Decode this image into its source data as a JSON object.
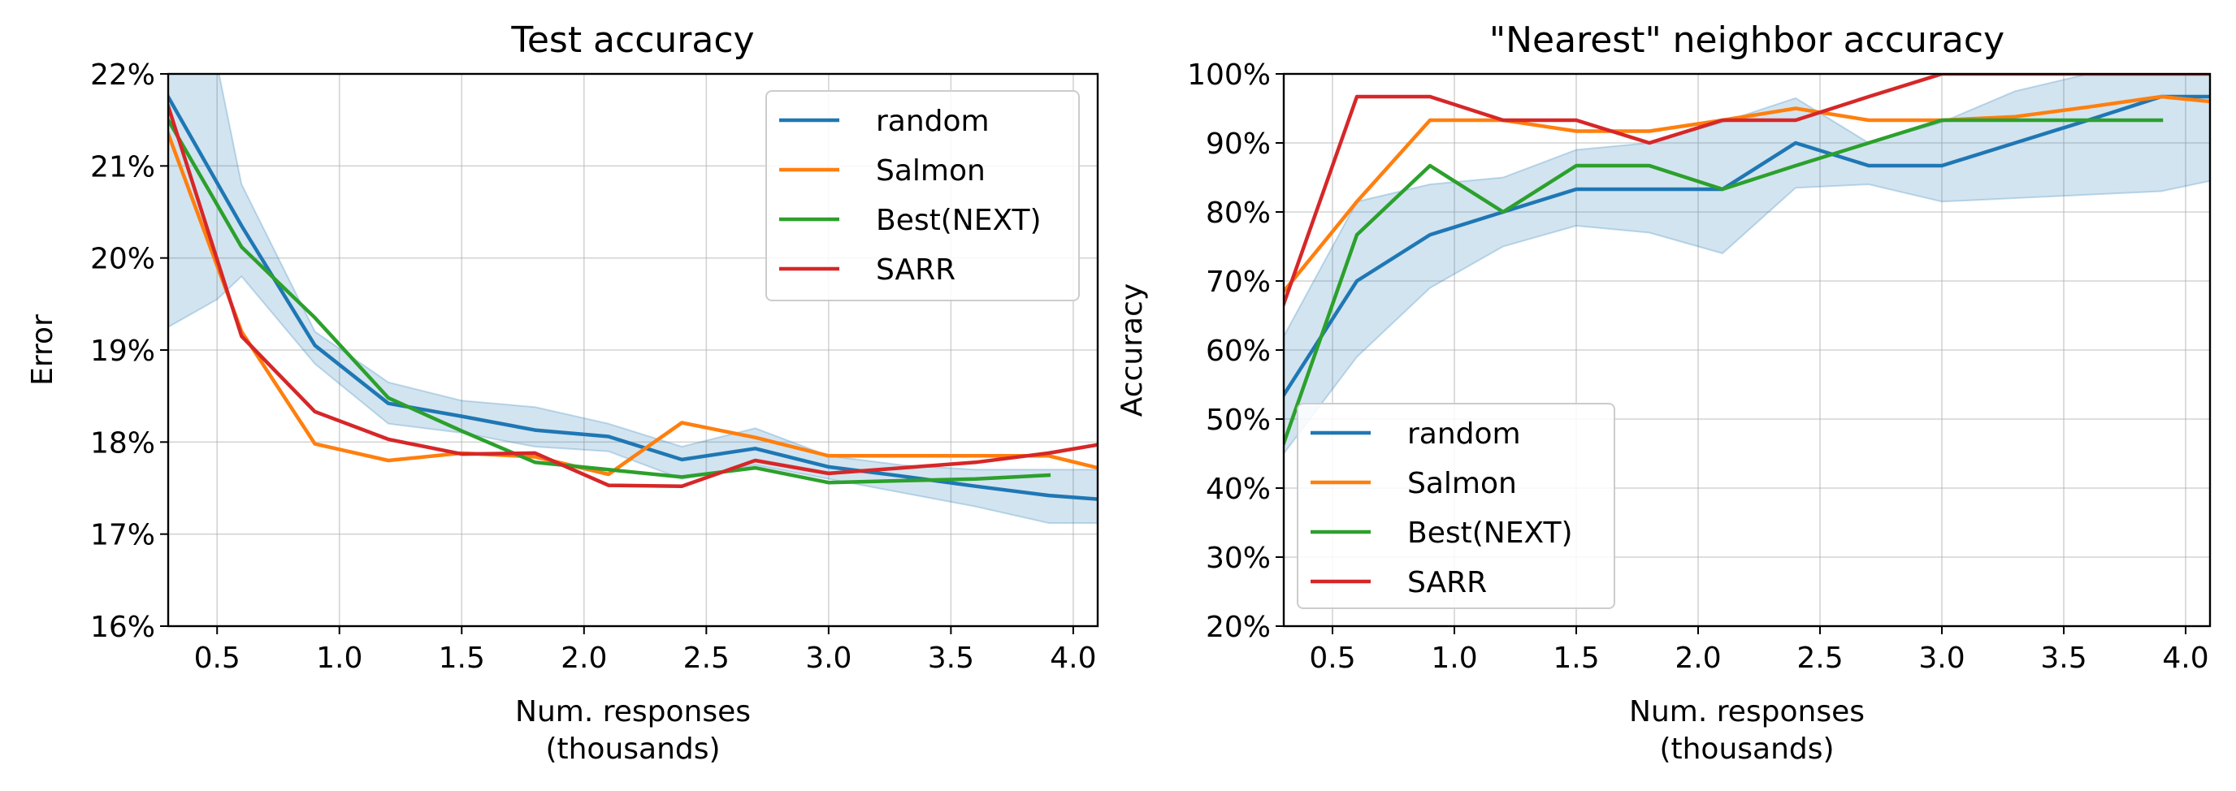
{
  "colors": {
    "random": "#1f77b4",
    "Salmon": "#ff7f0e",
    "Best(NEXT)": "#2ca02c",
    "SARR": "#d62728",
    "band": "#1f77b4",
    "grid": "#b0b0b0"
  },
  "chart_data": [
    {
      "type": "line",
      "title": "Test accuracy",
      "xlabel": "Num. responses\n(thousands)",
      "ylabel": "Error",
      "xlim": [
        0.3,
        4.1
      ],
      "ylim": [
        16,
        22
      ],
      "xticks": [
        0.5,
        1.0,
        1.5,
        2.0,
        2.5,
        3.0,
        3.5,
        4.0
      ],
      "xtick_labels": [
        "0.5",
        "1.0",
        "1.5",
        "2.0",
        "2.5",
        "3.0",
        "3.5",
        "4.0"
      ],
      "yticks": [
        16,
        17,
        18,
        19,
        20,
        21,
        22
      ],
      "ytick_labels": [
        "16%",
        "17%",
        "18%",
        "19%",
        "20%",
        "21%",
        "22%"
      ],
      "grid": true,
      "legend_position": "top-right",
      "band": {
        "series": "random",
        "x": [
          0.3,
          0.5,
          0.6,
          0.9,
          1.2,
          1.5,
          1.8,
          2.1,
          2.4,
          2.7,
          3.0,
          3.3,
          3.6,
          3.9,
          4.1
        ],
        "upper": [
          22.0,
          22.1,
          20.8,
          19.2,
          18.65,
          18.45,
          18.38,
          18.2,
          17.95,
          18.15,
          17.85,
          17.75,
          17.7,
          17.7,
          17.7
        ],
        "lower": [
          19.25,
          19.55,
          19.8,
          18.85,
          18.2,
          18.1,
          17.95,
          17.9,
          17.6,
          17.75,
          17.6,
          17.45,
          17.3,
          17.12,
          17.12
        ]
      },
      "series": [
        {
          "name": "random",
          "x": [
            0.3,
            0.6,
            0.9,
            1.2,
            1.5,
            1.8,
            2.1,
            2.4,
            2.7,
            3.0,
            3.3,
            3.6,
            3.9,
            4.1
          ],
          "values": [
            21.75,
            20.35,
            19.05,
            18.42,
            18.28,
            18.13,
            18.06,
            17.81,
            17.93,
            17.73,
            17.63,
            17.52,
            17.42,
            17.38
          ]
        },
        {
          "name": "Salmon",
          "x": [
            0.3,
            0.6,
            0.9,
            1.2,
            1.5,
            1.8,
            2.1,
            2.4,
            2.7,
            3.0,
            3.3,
            3.6,
            3.9,
            4.1
          ],
          "values": [
            21.35,
            19.2,
            17.98,
            17.8,
            17.88,
            17.84,
            17.65,
            18.21,
            18.05,
            17.85,
            17.85,
            17.85,
            17.85,
            17.72
          ]
        },
        {
          "name": "Best(NEXT)",
          "x": [
            0.3,
            0.6,
            0.9,
            1.2,
            1.5,
            1.8,
            2.1,
            2.4,
            2.7,
            3.0,
            3.3,
            3.6,
            3.9
          ],
          "values": [
            21.5,
            20.12,
            19.35,
            18.48,
            18.12,
            17.78,
            17.7,
            17.62,
            17.72,
            17.56,
            17.58,
            17.6,
            17.64
          ]
        },
        {
          "name": "SARR",
          "x": [
            0.3,
            0.6,
            0.9,
            1.2,
            1.5,
            1.8,
            2.1,
            2.4,
            2.7,
            3.0,
            3.3,
            3.6,
            3.9,
            4.1
          ],
          "values": [
            21.65,
            19.15,
            18.33,
            18.03,
            17.87,
            17.88,
            17.53,
            17.52,
            17.8,
            17.66,
            17.72,
            17.78,
            17.88,
            17.97
          ]
        }
      ]
    },
    {
      "type": "line",
      "title": "\"Nearest\" neighbor accuracy",
      "xlabel": "Num. responses\n(thousands)",
      "ylabel": "Accuracy",
      "xlim": [
        0.3,
        4.1
      ],
      "ylim": [
        20,
        100
      ],
      "xticks": [
        0.5,
        1.0,
        1.5,
        2.0,
        2.5,
        3.0,
        3.5,
        4.0
      ],
      "xtick_labels": [
        "0.5",
        "1.0",
        "1.5",
        "2.0",
        "2.5",
        "3.0",
        "3.5",
        "4.0"
      ],
      "yticks": [
        20,
        30,
        40,
        50,
        60,
        70,
        80,
        90,
        100
      ],
      "ytick_labels": [
        "20%",
        "30%",
        "40%",
        "50%",
        "60%",
        "70%",
        "80%",
        "90%",
        "100%"
      ],
      "grid": true,
      "legend_position": "bottom-left",
      "band": {
        "series": "random",
        "x": [
          0.3,
          0.6,
          0.9,
          1.2,
          1.5,
          1.8,
          2.1,
          2.4,
          2.7,
          3.0,
          3.3,
          3.6,
          3.9,
          4.1
        ],
        "upper": [
          62,
          81.5,
          84,
          85,
          89,
          90,
          93,
          96.5,
          90,
          93,
          97.5,
          100,
          100,
          100
        ],
        "lower": [
          45,
          59,
          69,
          75,
          78,
          77,
          74,
          83.5,
          84,
          81.5,
          82,
          82.5,
          83,
          84.5
        ]
      },
      "series": [
        {
          "name": "random",
          "x": [
            0.3,
            0.6,
            0.9,
            1.2,
            1.5,
            1.8,
            2.1,
            2.4,
            2.7,
            3.0,
            3.3,
            3.6,
            3.9,
            4.1
          ],
          "values": [
            53.5,
            70.0,
            76.7,
            80.0,
            83.3,
            83.3,
            83.3,
            90.0,
            86.7,
            86.7,
            90.0,
            93.3,
            96.7,
            96.7
          ]
        },
        {
          "name": "Salmon",
          "x": [
            0.3,
            0.6,
            0.9,
            1.2,
            1.5,
            1.8,
            2.1,
            2.4,
            2.7,
            3.0,
            3.3,
            3.6,
            3.9,
            4.1
          ],
          "values": [
            68.5,
            81.5,
            93.3,
            93.3,
            91.7,
            91.7,
            93.3,
            95.0,
            93.3,
            93.3,
            93.8,
            95.2,
            96.7,
            96.0
          ]
        },
        {
          "name": "Best(NEXT)",
          "x": [
            0.3,
            0.6,
            0.9,
            1.2,
            1.5,
            1.8,
            2.1,
            2.4,
            2.7,
            3.0,
            3.3,
            3.6,
            3.9
          ],
          "values": [
            46.5,
            76.7,
            86.7,
            80.0,
            86.7,
            86.7,
            83.3,
            86.7,
            90.0,
            93.3,
            93.3,
            93.3,
            93.3
          ]
        },
        {
          "name": "SARR",
          "x": [
            0.3,
            0.6,
            0.9,
            1.2,
            1.5,
            1.8,
            2.1,
            2.4,
            2.7,
            3.0,
            3.3,
            3.6,
            3.9,
            4.1
          ],
          "values": [
            66.7,
            96.7,
            96.7,
            93.3,
            93.3,
            90.0,
            93.3,
            93.3,
            96.7,
            100,
            100,
            100,
            100,
            100
          ]
        }
      ]
    }
  ]
}
